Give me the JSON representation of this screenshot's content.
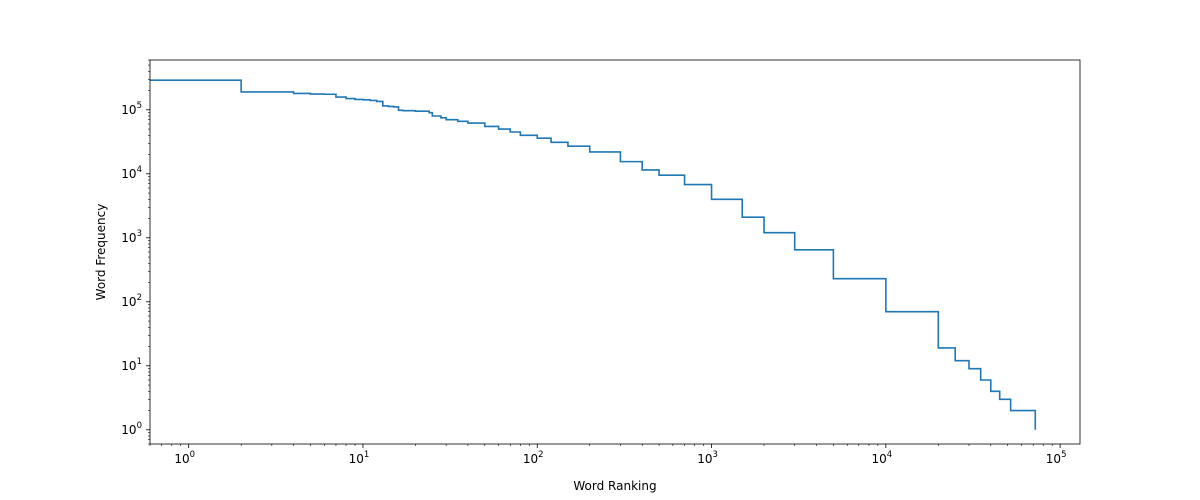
{
  "chart_data": {
    "type": "line",
    "title": "",
    "xlabel": "Word Ranking",
    "ylabel": "Word Frequency",
    "xscale": "log",
    "yscale": "log",
    "xlim": [
      0.6,
      130000
    ],
    "ylim": [
      0.6,
      600000
    ],
    "grid": false,
    "legend": "none",
    "drawstyle": "steps-post",
    "line_color": "#1f77b4",
    "x_ticks": [
      {
        "base": "10",
        "exp": "0"
      },
      {
        "base": "10",
        "exp": "1"
      },
      {
        "base": "10",
        "exp": "2"
      },
      {
        "base": "10",
        "exp": "3"
      },
      {
        "base": "10",
        "exp": "4"
      },
      {
        "base": "10",
        "exp": "5"
      }
    ],
    "y_ticks": [
      {
        "base": "10",
        "exp": "0"
      },
      {
        "base": "10",
        "exp": "1"
      },
      {
        "base": "10",
        "exp": "2"
      },
      {
        "base": "10",
        "exp": "3"
      },
      {
        "base": "10",
        "exp": "4"
      },
      {
        "base": "10",
        "exp": "5"
      }
    ],
    "series": [
      {
        "x": [
          0.6,
          1,
          2,
          3,
          4,
          5,
          6,
          7,
          8,
          9,
          10,
          11,
          12,
          13,
          14,
          15,
          16,
          17,
          20,
          24,
          25,
          28,
          30,
          35,
          40,
          50,
          60,
          70,
          80,
          100,
          120,
          150,
          200,
          300,
          400,
          500,
          700,
          1000,
          1500,
          2000,
          3000,
          5000,
          10000,
          20000,
          25000,
          30000,
          35000,
          40000,
          45000,
          52000,
          72000
        ],
        "y": [
          290000,
          290000,
          190000,
          190000,
          180000,
          176000,
          175000,
          158000,
          150000,
          145000,
          143000,
          140000,
          135000,
          115000,
          113000,
          111000,
          98000,
          97000,
          95000,
          90000,
          80000,
          75000,
          70000,
          66000,
          62000,
          55000,
          50000,
          45000,
          40000,
          36000,
          31000,
          27000,
          22000,
          15500,
          11500,
          9500,
          6800,
          4000,
          2100,
          1200,
          650,
          230,
          70,
          19,
          12,
          9,
          6,
          4,
          3,
          2,
          1
        ]
      }
    ]
  }
}
